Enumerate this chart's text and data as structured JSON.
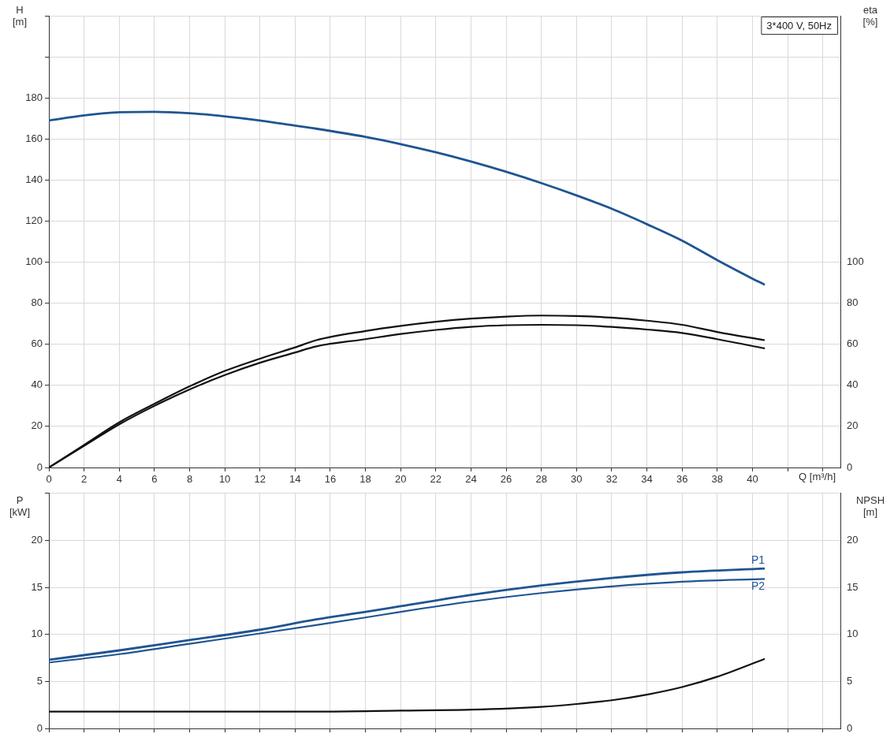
{
  "chart_data": [
    {
      "type": "line",
      "title": "3*400 V, 50Hz",
      "xlabel": "Q [m³/h]",
      "ylabel": "H [m]",
      "y2label": "eta [%]",
      "legend": false,
      "marker": "none",
      "grid": true,
      "xlim": [
        0,
        45
      ],
      "xticks": [
        0,
        2,
        4,
        6,
        8,
        10,
        12,
        14,
        16,
        18,
        20,
        22,
        24,
        26,
        28,
        30,
        32,
        34,
        36,
        38,
        40,
        {
          "value": 42,
          "label": null
        },
        {
          "value": 44,
          "label": null
        }
      ],
      "ylim": [
        0,
        220
      ],
      "yticks": [
        0,
        20,
        40,
        60,
        80,
        100,
        120,
        140,
        160,
        180,
        {
          "value": 200,
          "label": null
        },
        {
          "value": 220,
          "label": null
        }
      ],
      "y2lim": [
        0,
        220
      ],
      "y2ticks": [
        0,
        20,
        40,
        60,
        80,
        100
      ],
      "series": [
        {
          "color": "#1f5591",
          "x": [
            0,
            2,
            4,
            6,
            8,
            10,
            12,
            14,
            15.2,
            18,
            20,
            22,
            24,
            26,
            28,
            30,
            32,
            34,
            36,
            38,
            40,
            40.7
          ],
          "values": [
            169,
            171.5,
            173,
            173.2,
            172.5,
            171,
            169,
            166.5,
            165,
            161,
            157.5,
            153.5,
            149,
            144,
            138.5,
            132.5,
            126,
            118.5,
            110.5,
            101,
            92,
            89
          ]
        },
        {
          "color": "#111111",
          "x": [
            0,
            2,
            4,
            6,
            8,
            10,
            12,
            14,
            15.2,
            18,
            20,
            22,
            24,
            26,
            28,
            30,
            32,
            34,
            36,
            38,
            40.7
          ],
          "values": [
            0,
            11,
            22,
            31,
            39.5,
            47,
            53,
            58.5,
            62,
            66.5,
            69,
            71,
            72.5,
            73.5,
            74,
            73.8,
            73,
            71.5,
            69.5,
            66,
            62
          ]
        },
        {
          "color": "#111111",
          "x": [
            0,
            2,
            4,
            6,
            8,
            10,
            12,
            14,
            15.2,
            18,
            20,
            22,
            24,
            26,
            28,
            30,
            32,
            34,
            36,
            38,
            40.7
          ],
          "values": [
            0,
            10.5,
            21,
            30,
            38,
            45,
            51,
            56,
            59,
            62.5,
            65,
            67,
            68.5,
            69.3,
            69.5,
            69.3,
            68.5,
            67.2,
            65.5,
            62.5,
            58
          ]
        }
      ]
    },
    {
      "type": "line",
      "ylabel": "P [kW]",
      "y2label": "NPSH [m]",
      "legend": false,
      "marker": "none",
      "grid": true,
      "tick_labels": "y",
      "xlim": [
        0,
        45
      ],
      "xticks": [
        0,
        2,
        4,
        6,
        8,
        10,
        12,
        14,
        16,
        18,
        20,
        22,
        24,
        26,
        28,
        30,
        32,
        34,
        36,
        38,
        40,
        42,
        44
      ],
      "ylim": [
        0,
        25
      ],
      "yticks": [
        0,
        5,
        10,
        15,
        20,
        {
          "value": 25,
          "label": null
        }
      ],
      "y2lim": [
        0,
        25
      ],
      "y2ticks": [
        0,
        5,
        10,
        15,
        20
      ],
      "series": [
        {
          "name": "P1",
          "color": "#1f5591",
          "x": [
            0,
            4,
            8,
            12,
            15.2,
            18,
            20,
            24,
            28,
            32,
            36,
            40.7
          ],
          "values": [
            7.3,
            8.3,
            9.4,
            10.5,
            11.6,
            12.4,
            13,
            14.2,
            15.2,
            16,
            16.6,
            17
          ]
        },
        {
          "name": "P2",
          "color": "#1f5591",
          "x": [
            0,
            4,
            8,
            12,
            15.2,
            18,
            20,
            24,
            28,
            32,
            36,
            40.7
          ],
          "values": [
            7,
            7.9,
            9,
            10.1,
            11,
            11.8,
            12.4,
            13.5,
            14.4,
            15.1,
            15.6,
            15.9
          ]
        },
        {
          "color": "#111111",
          "x": [
            0,
            15.2,
            20,
            24,
            28,
            30,
            32,
            34,
            36,
            38,
            40.7
          ],
          "values": [
            1.8,
            1.8,
            1.9,
            2,
            2.3,
            2.6,
            3,
            3.6,
            4.4,
            5.5,
            7.4
          ]
        }
      ]
    }
  ]
}
